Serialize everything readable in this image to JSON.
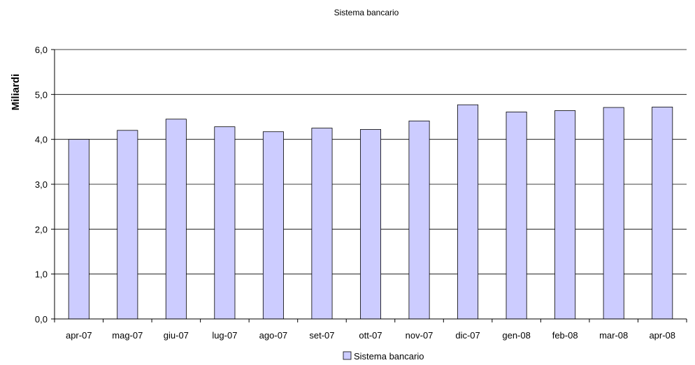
{
  "chart_data": {
    "type": "bar",
    "title": "Sistema bancario",
    "ylabel": "Miliardi",
    "xlabel": "",
    "categories": [
      "apr-07",
      "mag-07",
      "giu-07",
      "lug-07",
      "ago-07",
      "set-07",
      "ott-07",
      "nov-07",
      "dic-07",
      "gen-08",
      "feb-08",
      "mar-08",
      "apr-08"
    ],
    "series": [
      {
        "name": "Sistema bancario",
        "color": "#ccccff",
        "values": [
          4.0,
          4.2,
          4.45,
          4.28,
          4.17,
          4.25,
          4.22,
          4.41,
          4.77,
          4.61,
          4.64,
          4.71,
          4.72
        ]
      }
    ],
    "ylim": [
      0,
      6
    ],
    "yticks": [
      "0,0",
      "1,0",
      "2,0",
      "3,0",
      "4,0",
      "5,0",
      "6,0"
    ],
    "grid": true,
    "legend_position": "bottom"
  }
}
